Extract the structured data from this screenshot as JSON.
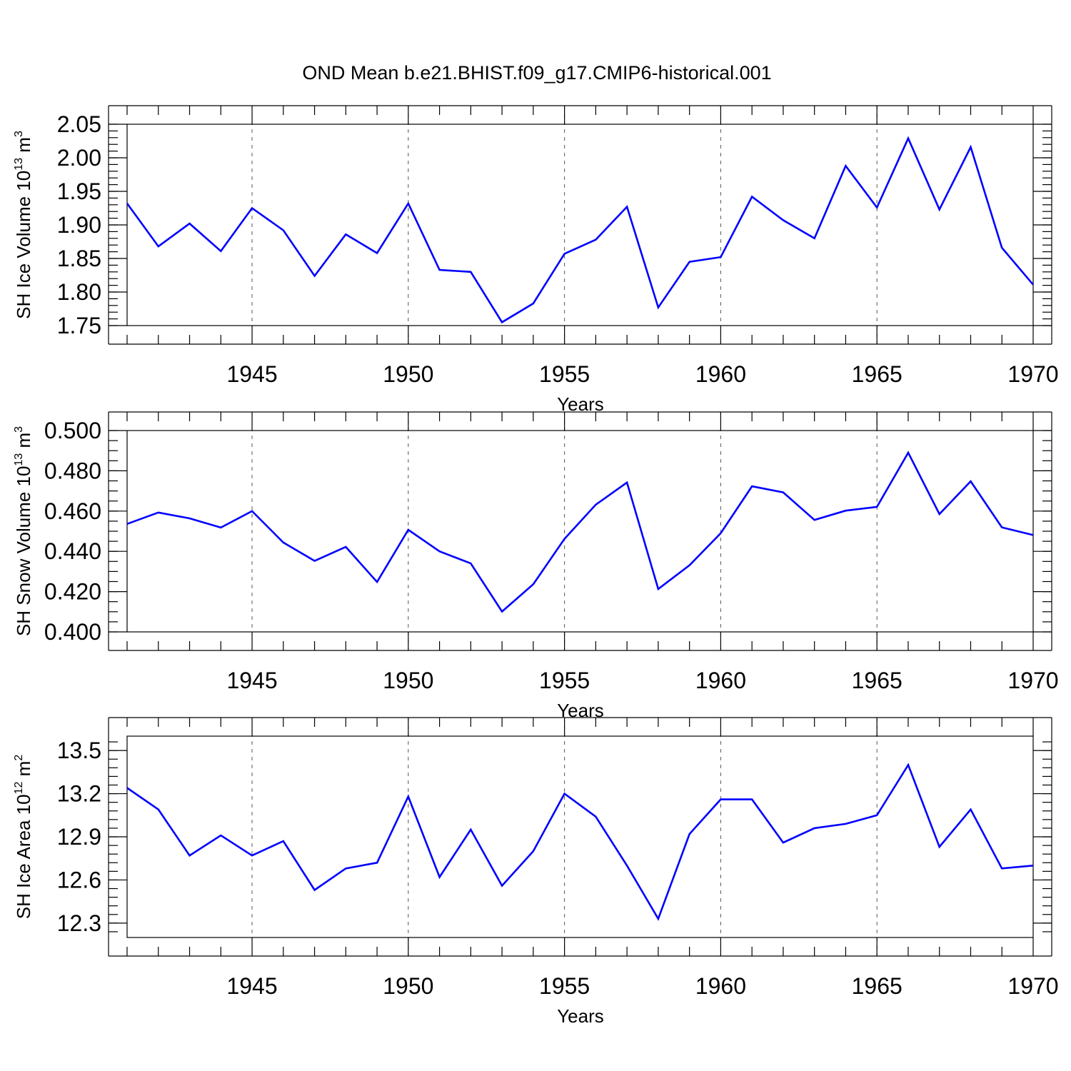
{
  "title": "OND Mean b.e21.BHIST.f09_g17.CMIP6-historical.001",
  "colors": {
    "line": "#0000ff",
    "grid": "#555555",
    "axis": "#000000"
  },
  "chart_data": [
    {
      "type": "line",
      "ylabel": "SH Ice Volume 10",
      "ylabel_exp": "13",
      "ylabel_unit": " m",
      "ylabel_unit_exp": "3",
      "xlabel": "Years",
      "xlim": [
        1941,
        1970
      ],
      "ylim": [
        1.75,
        2.05
      ],
      "yticks": [
        1.75,
        1.8,
        1.85,
        1.9,
        1.95,
        2.0,
        2.05
      ],
      "ytick_labels": [
        "1.75",
        "1.80",
        "1.85",
        "1.90",
        "1.95",
        "2.00",
        "2.05"
      ],
      "yminor_step": 0.01,
      "xticks": [
        1945,
        1950,
        1955,
        1960,
        1965,
        1970
      ],
      "xtick_labels": [
        "1945",
        "1950",
        "1955",
        "1960",
        "1965",
        "1970"
      ],
      "grid": "x-dashed",
      "series": [
        {
          "x": [
            1941,
            1942,
            1943,
            1944,
            1945,
            1946,
            1947,
            1948,
            1949,
            1950,
            1951,
            1952,
            1953,
            1954,
            1955,
            1956,
            1957,
            1958,
            1959,
            1960,
            1961,
            1962,
            1963,
            1964,
            1965,
            1966,
            1967,
            1968,
            1969,
            1970
          ],
          "values": [
            1.932,
            1.868,
            1.902,
            1.861,
            1.925,
            1.892,
            1.824,
            1.886,
            1.858,
            1.932,
            1.833,
            1.83,
            1.755,
            1.783,
            1.857,
            1.878,
            1.927,
            1.777,
            1.845,
            1.852,
            1.942,
            1.907,
            1.88,
            1.988,
            1.926,
            2.029,
            1.923,
            2.016,
            1.866,
            1.811
          ]
        }
      ]
    },
    {
      "type": "line",
      "ylabel": "SH Snow Volume 10",
      "ylabel_exp": "13",
      "ylabel_unit": " m",
      "ylabel_unit_exp": "3",
      "xlabel": "Years",
      "xlim": [
        1941,
        1970
      ],
      "ylim": [
        0.4,
        0.5
      ],
      "yticks": [
        0.4,
        0.42,
        0.44,
        0.46,
        0.48,
        0.5
      ],
      "ytick_labels": [
        "0.400",
        "0.420",
        "0.440",
        "0.460",
        "0.480",
        "0.500"
      ],
      "yminor_step": 0.005,
      "xticks": [
        1945,
        1950,
        1955,
        1960,
        1965,
        1970
      ],
      "xtick_labels": [
        "1945",
        "1950",
        "1955",
        "1960",
        "1965",
        "1970"
      ],
      "grid": "x-dashed",
      "series": [
        {
          "x": [
            1941,
            1942,
            1943,
            1944,
            1945,
            1946,
            1947,
            1948,
            1949,
            1950,
            1951,
            1952,
            1953,
            1954,
            1955,
            1956,
            1957,
            1958,
            1959,
            1960,
            1961,
            1962,
            1963,
            1964,
            1965,
            1966,
            1967,
            1968,
            1969,
            1970
          ],
          "values": [
            0.4536,
            0.4593,
            0.4564,
            0.4518,
            0.46,
            0.4444,
            0.4353,
            0.4422,
            0.4248,
            0.4507,
            0.44,
            0.434,
            0.4101,
            0.4237,
            0.4462,
            0.4632,
            0.4742,
            0.4213,
            0.4331,
            0.449,
            0.4723,
            0.4693,
            0.4556,
            0.4602,
            0.4621,
            0.489,
            0.4585,
            0.4748,
            0.4519,
            0.4481
          ]
        }
      ]
    },
    {
      "type": "line",
      "ylabel": "SH Ice Area 10",
      "ylabel_exp": "12",
      "ylabel_unit": " m",
      "ylabel_unit_exp": "2",
      "xlabel": "Years",
      "xlim": [
        1941,
        1970
      ],
      "ylim": [
        12.2,
        13.6
      ],
      "yticks": [
        12.3,
        12.6,
        12.9,
        13.2,
        13.5
      ],
      "ytick_labels": [
        "12.3",
        "12.6",
        "12.9",
        "13.2",
        "13.5"
      ],
      "yminor_step": 0.06,
      "yminor_start": 12.24,
      "xticks": [
        1945,
        1950,
        1955,
        1960,
        1965,
        1970
      ],
      "xtick_labels": [
        "1945",
        "1950",
        "1955",
        "1960",
        "1965",
        "1970"
      ],
      "grid": "x-dashed",
      "series": [
        {
          "x": [
            1941,
            1942,
            1943,
            1944,
            1945,
            1946,
            1947,
            1948,
            1949,
            1950,
            1951,
            1952,
            1953,
            1954,
            1955,
            1956,
            1957,
            1958,
            1959,
            1960,
            1961,
            1962,
            1963,
            1964,
            1965,
            1966,
            1967,
            1968,
            1969,
            1970
          ],
          "values": [
            13.24,
            13.09,
            12.77,
            12.91,
            12.77,
            12.87,
            12.53,
            12.68,
            12.72,
            13.18,
            12.62,
            12.95,
            12.56,
            12.8,
            13.2,
            13.04,
            12.7,
            12.33,
            12.92,
            13.16,
            13.16,
            12.86,
            12.96,
            12.99,
            13.05,
            13.4,
            12.83,
            13.09,
            12.68,
            12.7
          ]
        }
      ]
    }
  ]
}
